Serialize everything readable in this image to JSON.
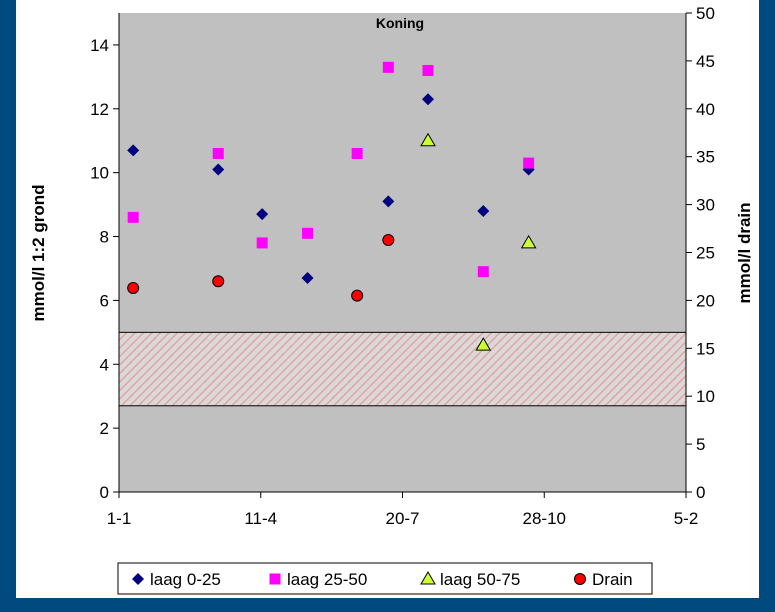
{
  "chart_data": {
    "type": "scatter",
    "title": "Koning",
    "ylabel": "mmol/l 1:2 grond",
    "y2label": "mmol/l drain",
    "x_tick_labels": [
      "1-1",
      "11-4",
      "20-7",
      "28-10",
      "5-2"
    ],
    "xlim": [
      0,
      400
    ],
    "ylim": [
      0,
      15
    ],
    "y2lim": [
      0,
      50
    ],
    "y_ticks": [
      0,
      2,
      4,
      6,
      8,
      10,
      12,
      14
    ],
    "y2_ticks": [
      0,
      5,
      10,
      15,
      20,
      25,
      30,
      35,
      40,
      45,
      50
    ],
    "reference_band": {
      "y_from": 2.7,
      "y_to": 5.0
    },
    "grid": false,
    "legend_position": "bottom",
    "series": [
      {
        "name": "laag 0-25",
        "axis": "left",
        "marker": "diamond",
        "color": "#000080",
        "points": [
          [
            10,
            10.7
          ],
          [
            70,
            10.1
          ],
          [
            101,
            8.7
          ],
          [
            133,
            6.7
          ],
          [
            190,
            9.1
          ],
          [
            218,
            12.3
          ],
          [
            257,
            8.8
          ],
          [
            289,
            10.1
          ]
        ]
      },
      {
        "name": "laag 25-50",
        "axis": "left",
        "marker": "square",
        "color": "#ff00ff",
        "points": [
          [
            10,
            8.6
          ],
          [
            70,
            10.6
          ],
          [
            101,
            7.8
          ],
          [
            133,
            8.1
          ],
          [
            168,
            10.6
          ],
          [
            190,
            13.3
          ],
          [
            218,
            13.2
          ],
          [
            257,
            6.9
          ],
          [
            289,
            10.3
          ]
        ]
      },
      {
        "name": "laag 50-75",
        "axis": "left",
        "marker": "triangle",
        "color": "#ccff33",
        "points": [
          [
            218,
            11.0
          ],
          [
            257,
            4.6
          ],
          [
            289,
            7.8
          ]
        ]
      },
      {
        "name": "Drain",
        "axis": "right",
        "marker": "circle",
        "color": "#ff0000",
        "points": [
          [
            10,
            21.3
          ],
          [
            70,
            22.0
          ],
          [
            168,
            20.5
          ],
          [
            190,
            26.3
          ]
        ]
      }
    ]
  },
  "colors": {
    "frame": "#004a7f",
    "plot_bg": "#c0c0c0",
    "band_stripe": "#e8a0a0"
  }
}
